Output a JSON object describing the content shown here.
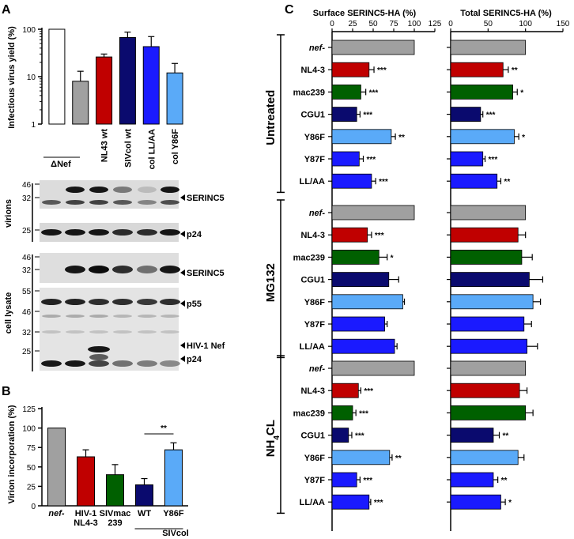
{
  "panels": {
    "a": "A",
    "b": "B",
    "c": "C"
  },
  "chart_a": {
    "type": "bar",
    "ylabel": "Infectious virus yield (%)",
    "yscale": "log",
    "ylim": [
      1,
      100
    ],
    "yticks": [
      "1",
      "10",
      "100"
    ],
    "group_label": "ΔNef",
    "categories": [
      "",
      "",
      "NL43 wt",
      "SIVcol wt",
      "col LL/AA",
      "col Y86F"
    ],
    "values": [
      100,
      8,
      26,
      67,
      43,
      12
    ],
    "errors": [
      0,
      5,
      4,
      20,
      27,
      7
    ],
    "colors": [
      "#ffffff",
      "#a0a0a0",
      "#c00000",
      "#0a0a6e",
      "#1a1aff",
      "#5aaaf8"
    ]
  },
  "blots": {
    "virions_label": "virions",
    "lysate_label": "cell lysate",
    "markers_virions_top": [
      "46",
      "32"
    ],
    "markers_virions_bottom": [
      "25"
    ],
    "markers_lysate_top": [
      "46",
      "32"
    ],
    "markers_lysate_bottom": [
      "55",
      "46",
      "32",
      "25"
    ],
    "band_labels": {
      "serinc5_virions": "SERINC5",
      "p24_virions": "p24",
      "serinc5_lysate": "SERINC5",
      "p55": "p55",
      "hiv_nef": "HIV-1 Nef",
      "p24_lysate": "p24"
    }
  },
  "chart_b": {
    "type": "bar",
    "ylabel": "Virion incorporation (%)",
    "ylim": [
      0,
      125
    ],
    "yticks": [
      "0",
      "25",
      "50",
      "75",
      "100",
      "125"
    ],
    "categories": [
      "nef-",
      "HIV-1 NL4-3",
      "SIVmac 239",
      "WT",
      "Y86F"
    ],
    "cat_lines": [
      [
        "nef-"
      ],
      [
        "HIV-1",
        "NL4-3"
      ],
      [
        "SIVmac",
        "239"
      ],
      [
        "WT"
      ],
      [
        "Y86F"
      ]
    ],
    "group_label": "SIVcol",
    "values": [
      100,
      63,
      40,
      27,
      72
    ],
    "errors": [
      0,
      9,
      13,
      8,
      9
    ],
    "colors": [
      "#a0a0a0",
      "#c00000",
      "#006000",
      "#0a0a6e",
      "#5aaaf8"
    ],
    "annotation": "**"
  },
  "chart_c": {
    "type": "bar",
    "orientation": "horizontal",
    "surface_title": "Surface SERINC5-HA (%)",
    "total_title": "Total SERINC5-HA (%)",
    "surface_ticks": [
      "0",
      "25",
      "50",
      "75",
      "100",
      "125"
    ],
    "total_ticks": [
      "0",
      "50",
      "100",
      "150"
    ],
    "surface_xlim": [
      0,
      125
    ],
    "total_xlim": [
      0,
      150
    ],
    "row_labels": [
      "nef-",
      "NL4-3",
      "mac239",
      "CGU1",
      "Y86F",
      "Y87F",
      "LL/AA"
    ],
    "row_colors": [
      "#a0a0a0",
      "#c00000",
      "#006000",
      "#0a0a6e",
      "#5aaaf8",
      "#1a1aff",
      "#1a1aff"
    ],
    "groups": [
      {
        "label": "Untreated",
        "surface": [
          100,
          45,
          35,
          30,
          72,
          33,
          48
        ],
        "surface_err": [
          0,
          6,
          6,
          4,
          5,
          5,
          5
        ],
        "surface_sig": [
          "",
          "***",
          "***",
          "***",
          "**",
          "***",
          "***"
        ],
        "total": [
          100,
          70,
          83,
          40,
          85,
          43,
          62
        ],
        "total_err": [
          0,
          7,
          6,
          3,
          6,
          3,
          5
        ],
        "total_sig": [
          "",
          "**",
          "*",
          "***",
          "*",
          "***",
          "**"
        ]
      },
      {
        "label": "MG132",
        "surface": [
          100,
          43,
          57,
          69,
          86,
          64,
          76
        ],
        "surface_err": [
          0,
          5,
          10,
          12,
          2,
          3,
          3
        ],
        "surface_sig": [
          "",
          "***",
          "*",
          "",
          "",
          "",
          ""
        ],
        "total": [
          100,
          90,
          95,
          105,
          110,
          98,
          102
        ],
        "total_err": [
          0,
          10,
          14,
          18,
          10,
          10,
          14
        ],
        "total_sig": [
          "",
          "",
          "",
          "",
          "",
          "",
          ""
        ]
      },
      {
        "label": "NH",
        "label_sub": "4",
        "label_post": "CL",
        "surface": [
          100,
          32,
          25,
          20,
          70,
          30,
          45
        ],
        "surface_err": [
          0,
          3,
          4,
          4,
          3,
          4,
          2
        ],
        "surface_sig": [
          "",
          "***",
          "***",
          "***",
          "**",
          "***",
          "***"
        ],
        "total": [
          100,
          92,
          100,
          57,
          90,
          57,
          67
        ],
        "total_err": [
          0,
          10,
          10,
          8,
          8,
          6,
          6
        ],
        "total_sig": [
          "",
          "",
          "",
          "**",
          "",
          "**",
          "*"
        ]
      }
    ]
  }
}
